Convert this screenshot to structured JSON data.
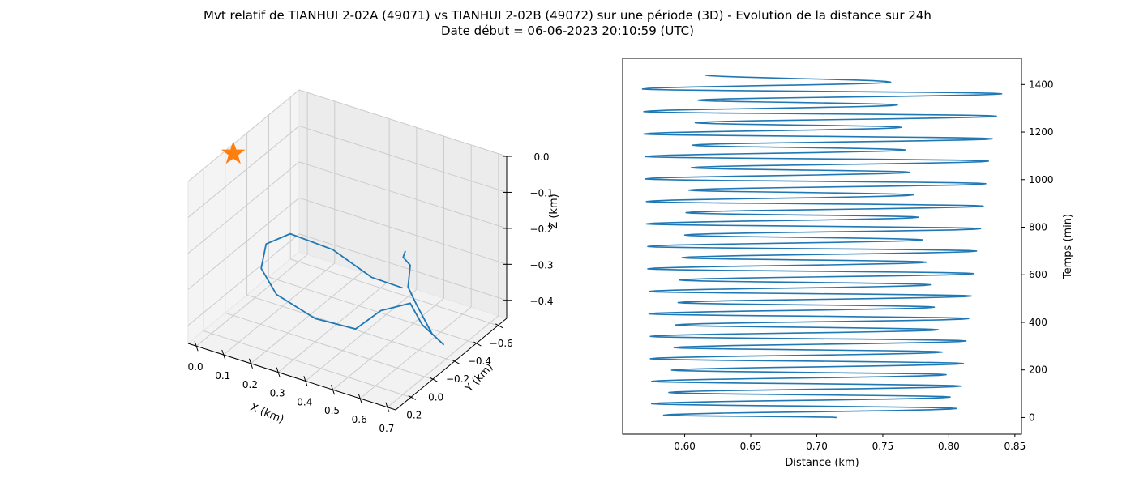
{
  "figure": {
    "title_line1": "Mvt relatif de TIANHUI 2-02A (49071) vs TIANHUI 2-02B (49072) sur une période (3D) - Evolution de la distance sur 24h",
    "title_line2": "Date début = 06-06-2023 20:10:59 (UTC)"
  },
  "colors": {
    "series": "#1f77b4",
    "marker": "#ff7f0e",
    "pane": "#f2f2f2",
    "grid": "#cccccc"
  },
  "chart_data": [
    {
      "type": "line3d",
      "xlabel": "X (km)",
      "ylabel": "Y (km)",
      "zlabel": "Z (km)",
      "xticks": [
        "0.0",
        "0.1",
        "0.2",
        "0.3",
        "0.4",
        "0.5",
        "0.6",
        "0.7"
      ],
      "yticks": [
        "0.2",
        "0.0",
        "−0.2",
        "−0.4",
        "−0.6"
      ],
      "zticks": [
        "0.0",
        "−0.1",
        "−0.2",
        "−0.3",
        "−0.4"
      ],
      "xlim": [
        -0.03,
        0.73
      ],
      "ylim": [
        -0.68,
        0.34
      ],
      "zlim": [
        -0.45,
        0
      ],
      "reference_marker": {
        "shape": "star",
        "x": 0,
        "y": 0,
        "z": 0
      },
      "trajectory": [
        {
          "x": 0.65,
          "y": 0.05,
          "z": -0.1
        },
        {
          "x": 0.63,
          "y": 0.02,
          "z": -0.13
        },
        {
          "x": 0.64,
          "y": -0.02,
          "z": -0.16
        },
        {
          "x": 0.6,
          "y": -0.1,
          "z": -0.25
        },
        {
          "x": 0.6,
          "y": -0.18,
          "z": -0.32
        },
        {
          "x": 0.64,
          "y": -0.22,
          "z": -0.4
        },
        {
          "x": 0.67,
          "y": -0.25,
          "z": -0.43
        },
        {
          "x": 0.62,
          "y": -0.18,
          "z": -0.37
        },
        {
          "x": 0.6,
          "y": -0.12,
          "z": -0.3
        },
        {
          "x": 0.5,
          "y": -0.1,
          "z": -0.34
        },
        {
          "x": 0.4,
          "y": -0.12,
          "z": -0.42
        },
        {
          "x": 0.26,
          "y": -0.1,
          "z": -0.42
        },
        {
          "x": 0.15,
          "y": -0.02,
          "z": -0.36
        },
        {
          "x": 0.13,
          "y": 0.07,
          "z": -0.27
        },
        {
          "x": 0.18,
          "y": 0.15,
          "z": -0.17
        },
        {
          "x": 0.28,
          "y": 0.18,
          "z": -0.11
        },
        {
          "x": 0.42,
          "y": 0.14,
          "z": -0.13
        },
        {
          "x": 0.53,
          "y": 0.06,
          "z": -0.2
        },
        {
          "x": 0.6,
          "y": -0.05,
          "z": -0.24
        }
      ]
    },
    {
      "type": "line",
      "xlabel": "Distance (km)",
      "ylabel": "Temps (min)",
      "xlim": [
        0.553,
        0.855
      ],
      "ylim": [
        -70,
        1510
      ],
      "xticks": [
        "0.60",
        "0.65",
        "0.70",
        "0.75",
        "0.80",
        "0.85"
      ],
      "yticks": [
        "0",
        "200",
        "400",
        "600",
        "800",
        "1000",
        "1200",
        "1400"
      ],
      "grid": false,
      "start": {
        "x": 0.715,
        "y": 0
      },
      "end": {
        "x": 0.615,
        "y": 1440
      },
      "extremes": [
        {
          "x": 0.584,
          "y": 10
        },
        {
          "x": 0.806,
          "y": 38
        },
        {
          "x": 0.575,
          "y": 58
        },
        {
          "x": 0.801,
          "y": 86
        },
        {
          "x": 0.588,
          "y": 105
        },
        {
          "x": 0.809,
          "y": 132
        },
        {
          "x": 0.575,
          "y": 152
        },
        {
          "x": 0.798,
          "y": 180
        },
        {
          "x": 0.59,
          "y": 199
        },
        {
          "x": 0.811,
          "y": 227
        },
        {
          "x": 0.574,
          "y": 247
        },
        {
          "x": 0.795,
          "y": 275
        },
        {
          "x": 0.592,
          "y": 294
        },
        {
          "x": 0.813,
          "y": 322
        },
        {
          "x": 0.574,
          "y": 341
        },
        {
          "x": 0.792,
          "y": 369
        },
        {
          "x": 0.593,
          "y": 389
        },
        {
          "x": 0.815,
          "y": 416
        },
        {
          "x": 0.573,
          "y": 436
        },
        {
          "x": 0.789,
          "y": 464
        },
        {
          "x": 0.595,
          "y": 483
        },
        {
          "x": 0.817,
          "y": 511
        },
        {
          "x": 0.573,
          "y": 530
        },
        {
          "x": 0.786,
          "y": 558
        },
        {
          "x": 0.596,
          "y": 578
        },
        {
          "x": 0.819,
          "y": 605
        },
        {
          "x": 0.572,
          "y": 625
        },
        {
          "x": 0.783,
          "y": 653
        },
        {
          "x": 0.598,
          "y": 672
        },
        {
          "x": 0.821,
          "y": 700
        },
        {
          "x": 0.572,
          "y": 719
        },
        {
          "x": 0.78,
          "y": 747
        },
        {
          "x": 0.6,
          "y": 767
        },
        {
          "x": 0.824,
          "y": 794
        },
        {
          "x": 0.571,
          "y": 814
        },
        {
          "x": 0.777,
          "y": 842
        },
        {
          "x": 0.601,
          "y": 861
        },
        {
          "x": 0.826,
          "y": 889
        },
        {
          "x": 0.571,
          "y": 908
        },
        {
          "x": 0.773,
          "y": 936
        },
        {
          "x": 0.603,
          "y": 956
        },
        {
          "x": 0.828,
          "y": 983
        },
        {
          "x": 0.57,
          "y": 1003
        },
        {
          "x": 0.77,
          "y": 1031
        },
        {
          "x": 0.605,
          "y": 1050
        },
        {
          "x": 0.83,
          "y": 1078
        },
        {
          "x": 0.57,
          "y": 1097
        },
        {
          "x": 0.767,
          "y": 1125
        },
        {
          "x": 0.606,
          "y": 1145
        },
        {
          "x": 0.833,
          "y": 1172
        },
        {
          "x": 0.569,
          "y": 1192
        },
        {
          "x": 0.764,
          "y": 1220
        },
        {
          "x": 0.608,
          "y": 1239
        },
        {
          "x": 0.836,
          "y": 1267
        },
        {
          "x": 0.569,
          "y": 1286
        },
        {
          "x": 0.761,
          "y": 1314
        },
        {
          "x": 0.61,
          "y": 1334
        },
        {
          "x": 0.84,
          "y": 1361
        },
        {
          "x": 0.568,
          "y": 1381
        },
        {
          "x": 0.756,
          "y": 1410
        }
      ]
    }
  ]
}
